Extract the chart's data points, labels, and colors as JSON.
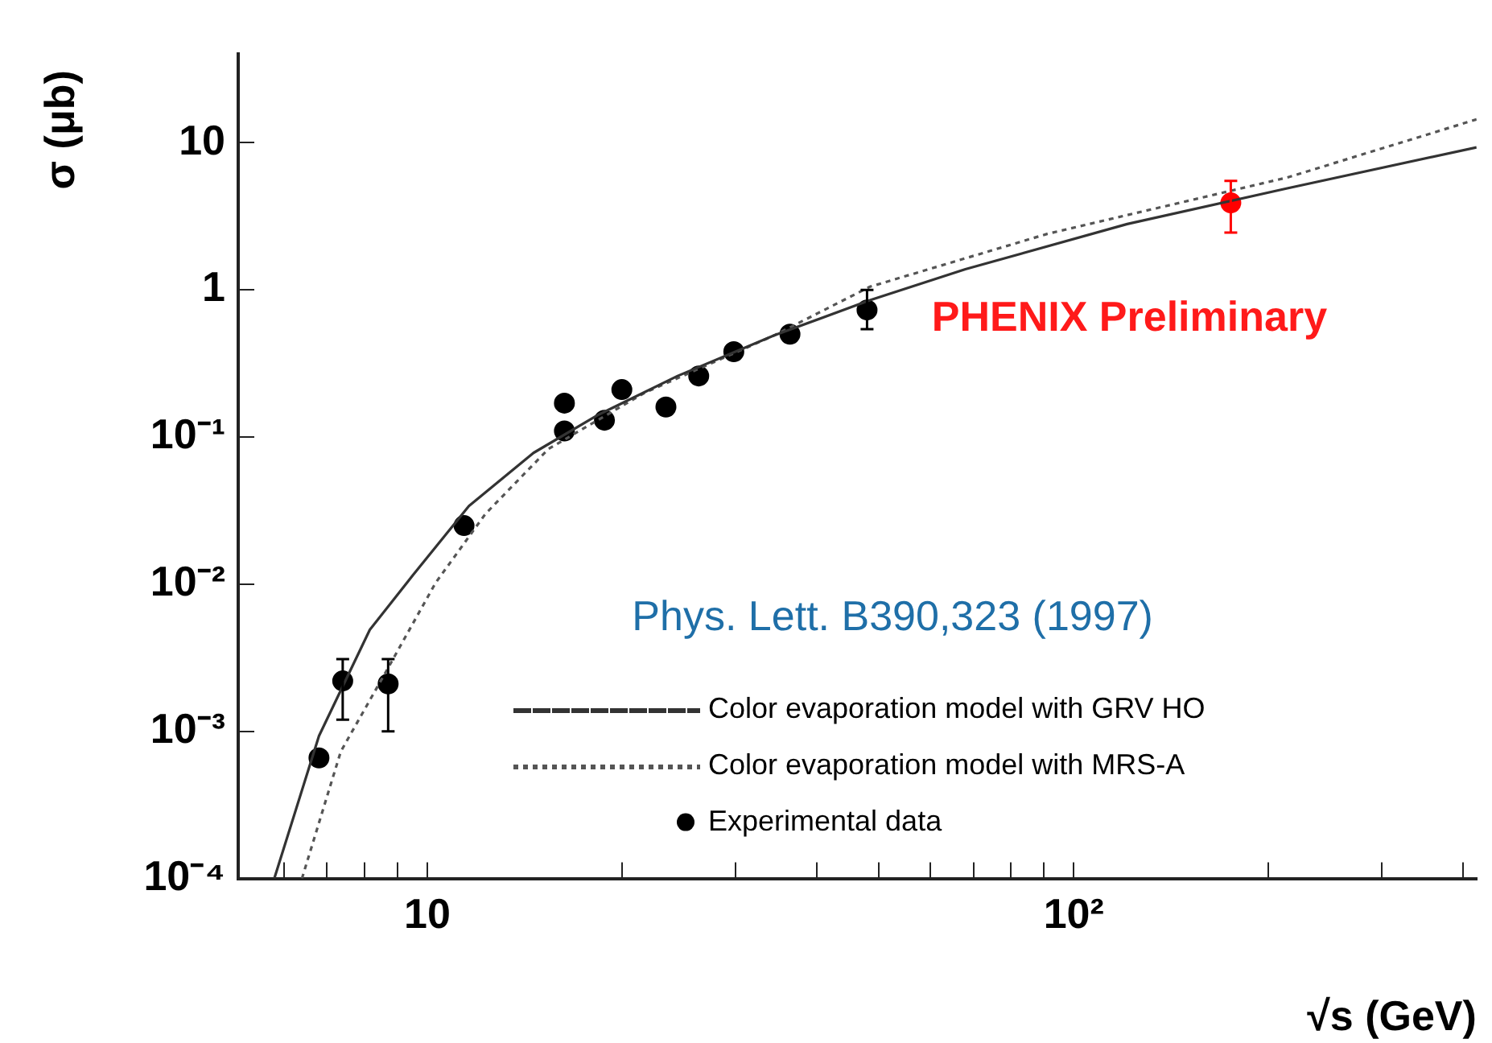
{
  "chart_data": {
    "type": "scatter",
    "xlabel": "√s (GeV)",
    "ylabel": "σ (μb)",
    "log": "xy",
    "grid": false,
    "legend": "bottom right",
    "marker": "circle",
    "xlim": [
      5.1,
      420
    ],
    "ylim": [
      0.0001,
      40
    ],
    "xticks": [
      {
        "value": 6,
        "label": null
      },
      {
        "value": 7,
        "label": null
      },
      {
        "value": 8,
        "label": null
      },
      {
        "value": 9,
        "label": null
      },
      10,
      {
        "value": 20,
        "label": null
      },
      {
        "value": 30,
        "label": null
      },
      {
        "value": 40,
        "label": null
      },
      {
        "value": 50,
        "label": null
      },
      {
        "value": 60,
        "label": null
      },
      {
        "value": 70,
        "label": null
      },
      {
        "value": 80,
        "label": null
      },
      {
        "value": 90,
        "label": null
      },
      {
        "value": 100,
        "label": "10²"
      },
      {
        "value": 200,
        "label": null
      },
      {
        "value": 300,
        "label": null
      },
      {
        "value": 400,
        "label": null
      }
    ],
    "yticks": [
      {
        "value": 0.0001,
        "label": "10⁻⁴"
      },
      {
        "value": 0.001,
        "label": "10⁻³"
      },
      {
        "value": 0.01,
        "label": "10⁻²"
      },
      {
        "value": 0.1,
        "label": "10⁻¹"
      },
      1,
      10
    ],
    "series": [
      {
        "name": "Color evaporation model with GRV HO",
        "type": "line",
        "line_style": "solid",
        "marker": "none",
        "color": "#333333",
        "x": [
          5.8,
          6.8,
          8.15,
          9.5,
          11.6,
          14.6,
          18.3,
          24.4,
          34.4,
          48.4,
          68,
          121,
          214,
          420
        ],
        "values": [
          0.0001,
          0.00093,
          0.0049,
          0.0115,
          0.034,
          0.078,
          0.14,
          0.26,
          0.49,
          0.85,
          1.38,
          2.8,
          4.9,
          9.3
        ]
      },
      {
        "name": "Color evaporation model with MRS-A",
        "type": "line",
        "line_style": "dotted",
        "marker": "none",
        "color": "#555555",
        "x": [
          6.4,
          7.35,
          8.7,
          10.3,
          12.3,
          15.4,
          21.7,
          34.4,
          48.4,
          91,
          214,
          420
        ],
        "values": [
          0.0001,
          0.00073,
          0.0027,
          0.0102,
          0.03,
          0.083,
          0.2,
          0.49,
          1.05,
          2.4,
          5.8,
          14.4
        ]
      },
      {
        "name": "Experimental data",
        "color": "#000000",
        "x": [
          6.8,
          7.4,
          8.7,
          11.4,
          16.3,
          16.3,
          18.8,
          20,
          23.4,
          26.3,
          29.8,
          36.4,
          47.9
        ],
        "values": [
          0.00066,
          0.0022,
          0.0021,
          0.025,
          0.17,
          0.11,
          0.13,
          0.21,
          0.16,
          0.26,
          0.38,
          0.5,
          0.73
        ],
        "errors": [
          null,
          [
            0.0012,
            0.0031
          ],
          [
            0.001,
            0.0031
          ],
          null,
          null,
          null,
          null,
          null,
          null,
          null,
          null,
          null,
          [
            0.54,
            1.0
          ]
        ]
      },
      {
        "color": "#ff0000",
        "x": [
          175
        ],
        "values": [
          3.9
        ],
        "errors": [
          [
            2.45,
            5.5
          ]
        ]
      }
    ],
    "annotations": [
      "PHENIX Preliminary",
      "Phys. Lett. B390,323 (1997)"
    ]
  }
}
